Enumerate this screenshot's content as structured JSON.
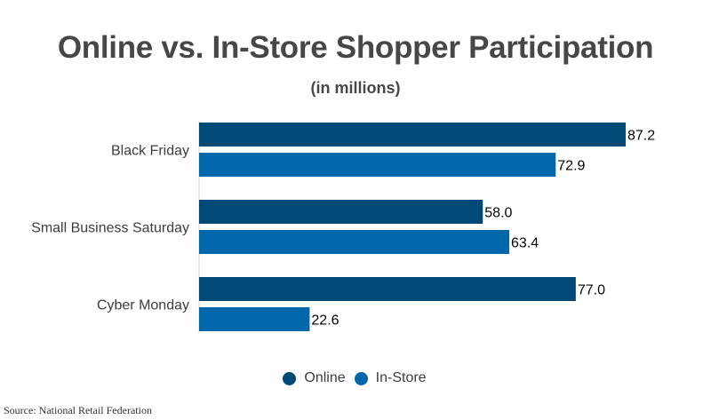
{
  "chart_data": {
    "type": "bar",
    "orientation": "horizontal",
    "title": "Online vs. In-Store Shopper Participation",
    "subtitle": "(in millions)",
    "categories": [
      "Black Friday",
      "Small Business Saturday",
      "Cyber Monday"
    ],
    "series": [
      {
        "name": "Online",
        "color": "#004a78",
        "values": [
          87.2,
          58.0,
          77.0
        ],
        "labels": [
          "87.2",
          "58.0",
          "77.0"
        ]
      },
      {
        "name": "In-Store",
        "color": "#0068ab",
        "values": [
          72.9,
          63.4,
          22.6
        ],
        "labels": [
          "72.9",
          "63.4",
          "22.6"
        ]
      }
    ],
    "xlim": [
      0,
      87.2
    ],
    "grid": false,
    "legend_position": "bottom"
  },
  "source": "Source: National Retail Federation"
}
